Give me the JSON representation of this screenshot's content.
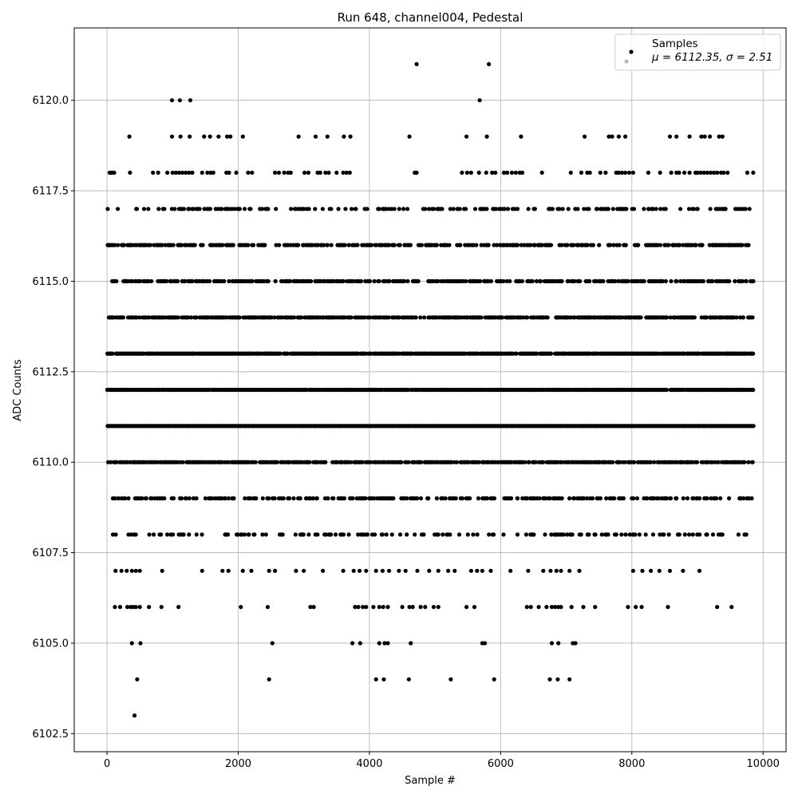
{
  "chart_data": {
    "type": "scatter",
    "title": "Run 648, channel004, Pedestal",
    "xlabel": "Sample #",
    "ylabel": "ADC Counts",
    "xlim": [
      -500,
      10350
    ],
    "ylim": [
      6102.0,
      6122.0
    ],
    "x_ticks": [
      0,
      2000,
      4000,
      6000,
      8000,
      10000
    ],
    "x_tick_labels": [
      "0",
      "2000",
      "4000",
      "6000",
      "8000",
      "10000"
    ],
    "y_ticks": [
      6102.5,
      6105.0,
      6107.5,
      6110.0,
      6112.5,
      6115.0,
      6117.5,
      6120.0
    ],
    "y_tick_labels": [
      "6102.5",
      "6105.0",
      "6107.5",
      "6110.0",
      "6112.5",
      "6115.0",
      "6117.5",
      "6120.0"
    ],
    "grid": true,
    "legend_position": "top-right",
    "marker_color": "#000000",
    "series": [
      {
        "name": "Samples",
        "stats_label": "μ = 6112.35, σ = 2.51",
        "bands": [
          {
            "y": 6111,
            "density": 1.0
          },
          {
            "y": 6112,
            "density": 0.93
          },
          {
            "y": 6113,
            "density": 0.9
          },
          {
            "y": 6110,
            "density": 0.72
          },
          {
            "y": 6114,
            "density": 0.7
          },
          {
            "y": 6115,
            "density": 0.55
          },
          {
            "y": 6116,
            "density": 0.5
          },
          {
            "y": 6109,
            "density": 0.4
          },
          {
            "y": 6117,
            "density": 0.3
          },
          {
            "y": 6108,
            "density": 0.22
          }
        ],
        "sparse_points": [
          [
            420,
            6103
          ],
          [
            460,
            6104
          ],
          [
            2470,
            6104
          ],
          [
            4100,
            6104
          ],
          [
            4220,
            6104
          ],
          [
            4600,
            6104
          ],
          [
            5240,
            6104
          ],
          [
            5900,
            6104
          ],
          [
            6750,
            6104
          ],
          [
            6870,
            6104
          ],
          [
            7050,
            6104
          ],
          [
            380,
            6105
          ],
          [
            510,
            6105
          ],
          [
            2520,
            6105
          ],
          [
            3740,
            6105
          ],
          [
            3860,
            6105
          ],
          [
            4150,
            6105
          ],
          [
            4230,
            6105
          ],
          [
            4280,
            6105
          ],
          [
            4630,
            6105
          ],
          [
            5720,
            6105
          ],
          [
            5760,
            6105
          ],
          [
            6780,
            6105
          ],
          [
            6880,
            6105
          ],
          [
            7100,
            6105
          ],
          [
            7140,
            6105
          ],
          [
            120,
            6106
          ],
          [
            200,
            6106
          ],
          [
            310,
            6106
          ],
          [
            360,
            6106
          ],
          [
            400,
            6106
          ],
          [
            440,
            6106
          ],
          [
            500,
            6106
          ],
          [
            640,
            6106
          ],
          [
            830,
            6106
          ],
          [
            1090,
            6106
          ],
          [
            2040,
            6106
          ],
          [
            2450,
            6106
          ],
          [
            3100,
            6106
          ],
          [
            3150,
            6106
          ],
          [
            3780,
            6106
          ],
          [
            3830,
            6106
          ],
          [
            3900,
            6106
          ],
          [
            3950,
            6106
          ],
          [
            4060,
            6106
          ],
          [
            4150,
            6106
          ],
          [
            4210,
            6106
          ],
          [
            4280,
            6106
          ],
          [
            4500,
            6106
          ],
          [
            4610,
            6106
          ],
          [
            4660,
            6106
          ],
          [
            4780,
            6106
          ],
          [
            4850,
            6106
          ],
          [
            4980,
            6106
          ],
          [
            5050,
            6106
          ],
          [
            5480,
            6106
          ],
          [
            5600,
            6106
          ],
          [
            6400,
            6106
          ],
          [
            6460,
            6106
          ],
          [
            6580,
            6106
          ],
          [
            6700,
            6106
          ],
          [
            6780,
            6106
          ],
          [
            6830,
            6106
          ],
          [
            6880,
            6106
          ],
          [
            6920,
            6106
          ],
          [
            7080,
            6106
          ],
          [
            7260,
            6106
          ],
          [
            7440,
            6106
          ],
          [
            7940,
            6106
          ],
          [
            8060,
            6106
          ],
          [
            8150,
            6106
          ],
          [
            8550,
            6106
          ],
          [
            9300,
            6106
          ],
          [
            9520,
            6106
          ],
          [
            130,
            6107
          ],
          [
            220,
            6107
          ],
          [
            300,
            6107
          ],
          [
            380,
            6107
          ],
          [
            440,
            6107
          ],
          [
            500,
            6107
          ],
          [
            840,
            6107
          ],
          [
            1450,
            6107
          ],
          [
            1760,
            6107
          ],
          [
            1850,
            6107
          ],
          [
            2070,
            6107
          ],
          [
            2200,
            6107
          ],
          [
            2470,
            6107
          ],
          [
            2560,
            6107
          ],
          [
            2880,
            6107
          ],
          [
            3000,
            6107
          ],
          [
            3290,
            6107
          ],
          [
            3600,
            6107
          ],
          [
            3760,
            6107
          ],
          [
            3850,
            6107
          ],
          [
            3950,
            6107
          ],
          [
            4100,
            6107
          ],
          [
            4200,
            6107
          ],
          [
            4300,
            6107
          ],
          [
            4450,
            6107
          ],
          [
            4550,
            6107
          ],
          [
            4730,
            6107
          ],
          [
            4910,
            6107
          ],
          [
            5050,
            6107
          ],
          [
            5200,
            6107
          ],
          [
            5300,
            6107
          ],
          [
            5550,
            6107
          ],
          [
            5640,
            6107
          ],
          [
            5720,
            6107
          ],
          [
            5850,
            6107
          ],
          [
            6150,
            6107
          ],
          [
            6420,
            6107
          ],
          [
            6650,
            6107
          ],
          [
            6760,
            6107
          ],
          [
            6850,
            6107
          ],
          [
            6920,
            6107
          ],
          [
            7050,
            6107
          ],
          [
            7200,
            6107
          ],
          [
            8020,
            6107
          ],
          [
            8160,
            6107
          ],
          [
            8290,
            6107
          ],
          [
            8420,
            6107
          ],
          [
            8580,
            6107
          ],
          [
            8780,
            6107
          ],
          [
            9030,
            6107
          ],
          [
            990,
            6120
          ],
          [
            1110,
            6120
          ],
          [
            1270,
            6120
          ],
          [
            5680,
            6120
          ],
          [
            4720,
            6121
          ],
          [
            5820,
            6121
          ],
          [
            340,
            6119
          ],
          [
            990,
            6119
          ],
          [
            1120,
            6119
          ],
          [
            1260,
            6119
          ],
          [
            1480,
            6119
          ],
          [
            1570,
            6119
          ],
          [
            1700,
            6119
          ],
          [
            1830,
            6119
          ],
          [
            1880,
            6119
          ],
          [
            2070,
            6119
          ],
          [
            2920,
            6119
          ],
          [
            3180,
            6119
          ],
          [
            3360,
            6119
          ],
          [
            3610,
            6119
          ],
          [
            3710,
            6119
          ],
          [
            4610,
            6119
          ],
          [
            5480,
            6119
          ],
          [
            5790,
            6119
          ],
          [
            6310,
            6119
          ],
          [
            7280,
            6119
          ],
          [
            7650,
            6119
          ],
          [
            7700,
            6119
          ],
          [
            7800,
            6119
          ],
          [
            7900,
            6119
          ],
          [
            8580,
            6119
          ],
          [
            8680,
            6119
          ],
          [
            8880,
            6119
          ],
          [
            9060,
            6119
          ],
          [
            9110,
            6119
          ],
          [
            9190,
            6119
          ],
          [
            9330,
            6119
          ],
          [
            9380,
            6119
          ],
          [
            40,
            6118
          ],
          [
            70,
            6118
          ],
          [
            110,
            6118
          ],
          [
            350,
            6118
          ],
          [
            700,
            6118
          ],
          [
            780,
            6118
          ],
          [
            920,
            6118
          ],
          [
            1000,
            6118
          ],
          [
            1050,
            6118
          ],
          [
            1100,
            6118
          ],
          [
            1150,
            6118
          ],
          [
            1200,
            6118
          ],
          [
            1250,
            6118
          ],
          [
            1300,
            6118
          ],
          [
            1450,
            6118
          ],
          [
            1530,
            6118
          ],
          [
            1580,
            6118
          ],
          [
            1620,
            6118
          ],
          [
            1820,
            6118
          ],
          [
            1860,
            6118
          ],
          [
            1970,
            6118
          ],
          [
            2150,
            6118
          ],
          [
            2210,
            6118
          ],
          [
            2560,
            6118
          ],
          [
            2620,
            6118
          ],
          [
            2700,
            6118
          ],
          [
            2760,
            6118
          ],
          [
            2800,
            6118
          ],
          [
            3010,
            6118
          ],
          [
            3070,
            6118
          ],
          [
            3210,
            6118
          ],
          [
            3250,
            6118
          ],
          [
            3330,
            6118
          ],
          [
            3380,
            6118
          ],
          [
            3500,
            6118
          ],
          [
            3600,
            6118
          ],
          [
            3650,
            6118
          ],
          [
            3700,
            6118
          ],
          [
            4690,
            6118
          ],
          [
            4720,
            6118
          ],
          [
            5410,
            6118
          ],
          [
            5490,
            6118
          ],
          [
            5550,
            6118
          ],
          [
            5670,
            6118
          ],
          [
            5780,
            6118
          ],
          [
            5870,
            6118
          ],
          [
            5920,
            6118
          ],
          [
            6050,
            6118
          ],
          [
            6100,
            6118
          ],
          [
            6170,
            6118
          ],
          [
            6230,
            6118
          ],
          [
            6290,
            6118
          ],
          [
            6330,
            6118
          ],
          [
            6630,
            6118
          ],
          [
            7070,
            6118
          ],
          [
            7230,
            6118
          ],
          [
            7320,
            6118
          ],
          [
            7360,
            6118
          ],
          [
            7520,
            6118
          ],
          [
            7600,
            6118
          ],
          [
            7760,
            6118
          ],
          [
            7800,
            6118
          ],
          [
            7850,
            6118
          ],
          [
            7900,
            6118
          ],
          [
            7960,
            6118
          ],
          [
            8020,
            6118
          ],
          [
            8250,
            6118
          ],
          [
            8430,
            6118
          ],
          [
            8600,
            6118
          ],
          [
            8680,
            6118
          ],
          [
            8720,
            6118
          ],
          [
            8800,
            6118
          ],
          [
            8880,
            6118
          ],
          [
            8970,
            6118
          ],
          [
            9000,
            6118
          ],
          [
            9050,
            6118
          ],
          [
            9100,
            6118
          ],
          [
            9150,
            6118
          ],
          [
            9200,
            6118
          ],
          [
            9250,
            6118
          ],
          [
            9300,
            6118
          ],
          [
            9360,
            6118
          ],
          [
            9400,
            6118
          ],
          [
            9460,
            6118
          ],
          [
            9760,
            6118
          ],
          [
            9850,
            6118
          ]
        ]
      }
    ]
  }
}
